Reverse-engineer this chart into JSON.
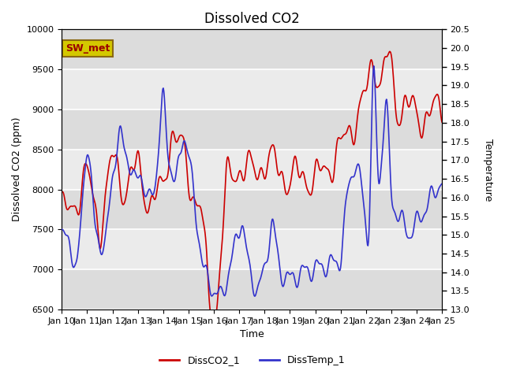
{
  "title": "Dissolved CO2",
  "xlabel": "Time",
  "ylabel_left": "Dissolved CO2 (ppm)",
  "ylabel_right": "Temperature",
  "ylim_left": [
    6500,
    10000
  ],
  "ylim_right": [
    13.0,
    20.5
  ],
  "xtick_labels": [
    "Jan 10",
    "Jan 11",
    "Jan 12",
    "Jan 13",
    "Jan 14",
    "Jan 15",
    "Jan 16",
    "Jan 17",
    "Jan 18",
    "Jan 19",
    "Jan 20",
    "Jan 21",
    "Jan 22",
    "Jan 23",
    "Jan 24",
    "Jan 25"
  ],
  "legend_labels": [
    "DissCO2_1",
    "DissTemp_1"
  ],
  "co2_color": "#cc0000",
  "temp_color": "#3333cc",
  "band_color": "#dcdcdc",
  "bg_color": "#ebebeb",
  "sw_met_label": "SW_met",
  "sw_met_bg": "#d4c800",
  "sw_met_border": "#8B6914",
  "sw_met_text": "#990000",
  "title_fontsize": 12,
  "label_fontsize": 9,
  "tick_fontsize": 8
}
